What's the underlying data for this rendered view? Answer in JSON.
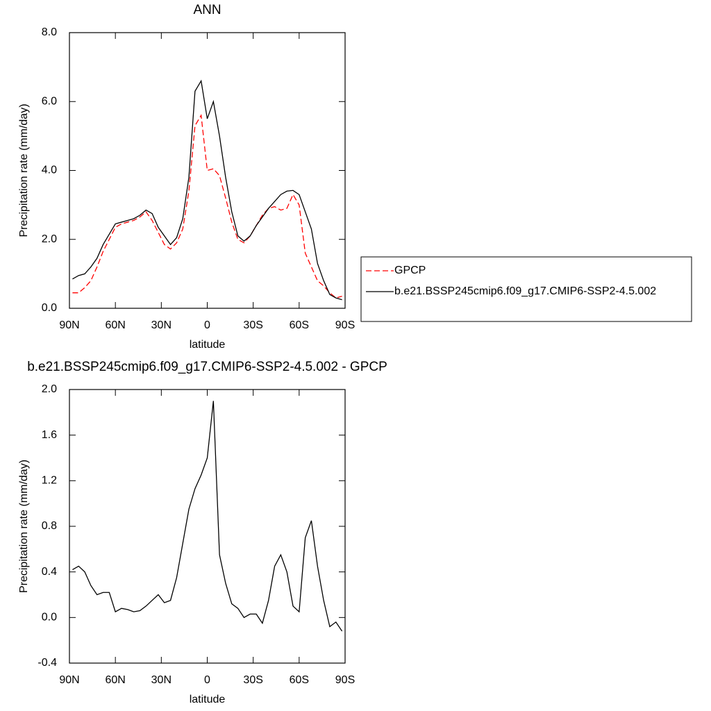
{
  "chart_data": [
    {
      "type": "line",
      "title": "ANN",
      "x_label": "latitude",
      "y_label": "Precipitation rate (mm/day)",
      "x": [
        88,
        84,
        80,
        76,
        72,
        68,
        64,
        60,
        56,
        52,
        48,
        44,
        40,
        36,
        32,
        28,
        24,
        20,
        16,
        12,
        8,
        4,
        0,
        -4,
        -8,
        -12,
        -16,
        -20,
        -24,
        -28,
        -32,
        -36,
        -40,
        -44,
        -48,
        -52,
        -56,
        -60,
        -64,
        -68,
        -72,
        -76,
        -80,
        -84,
        -88
      ],
      "xlim": [
        90,
        -90
      ],
      "xticks": [
        {
          "value": 90,
          "label": "90N"
        },
        {
          "value": 60,
          "label": "60N"
        },
        {
          "value": 30,
          "label": "30N"
        },
        0,
        {
          "value": -30,
          "label": "30S"
        },
        {
          "value": -60,
          "label": "60S"
        },
        {
          "value": -90,
          "label": "90S"
        }
      ],
      "ylim": [
        0,
        8
      ],
      "yticks": [
        {
          "value": 0,
          "label": "0.0"
        },
        {
          "value": 2,
          "label": "2.0"
        },
        {
          "value": 4,
          "label": "4.0"
        },
        {
          "value": 6,
          "label": "6.0"
        },
        {
          "value": 8,
          "label": "8.0"
        }
      ],
      "legend": "outside-right",
      "series": [
        {
          "name": "GPCP",
          "color": "#ff0000",
          "line_style": "dashed",
          "values": [
            0.45,
            0.45,
            0.6,
            0.8,
            1.2,
            1.65,
            2.0,
            2.35,
            2.45,
            2.5,
            2.55,
            2.65,
            2.8,
            2.55,
            2.2,
            1.85,
            1.72,
            1.9,
            2.3,
            3.4,
            5.3,
            5.6,
            4.0,
            4.05,
            3.85,
            3.2,
            2.5,
            2.0,
            1.9,
            2.1,
            2.4,
            2.7,
            2.9,
            2.95,
            2.85,
            2.9,
            3.3,
            3.0,
            1.6,
            1.2,
            0.8,
            0.65,
            0.45,
            0.3,
            0.35
          ]
        },
        {
          "name": "b.e21.BSSP245cmip6.f09_g17.CMIP6-SSP2-4.5.002",
          "color": "#000000",
          "line_style": "solid",
          "values": [
            0.85,
            0.95,
            1.0,
            1.2,
            1.45,
            1.85,
            2.15,
            2.45,
            2.5,
            2.55,
            2.6,
            2.7,
            2.85,
            2.75,
            2.35,
            2.1,
            1.85,
            2.05,
            2.6,
            3.8,
            6.3,
            6.6,
            5.5,
            6.0,
            5.0,
            3.8,
            2.8,
            2.1,
            1.95,
            2.1,
            2.4,
            2.65,
            2.9,
            3.1,
            3.3,
            3.4,
            3.42,
            3.3,
            2.8,
            2.3,
            1.3,
            0.8,
            0.4,
            0.3,
            0.25
          ]
        }
      ]
    },
    {
      "type": "line",
      "title": "b.e21.BSSP245cmip6.f09_g17.CMIP6-SSP2-4.5.002 - GPCP",
      "x_label": "latitude",
      "y_label": "Precipitation rate (mm/day)",
      "x": [
        88,
        84,
        80,
        76,
        72,
        68,
        64,
        60,
        56,
        52,
        48,
        44,
        40,
        36,
        32,
        28,
        24,
        20,
        16,
        12,
        8,
        4,
        0,
        -4,
        -8,
        -12,
        -16,
        -20,
        -24,
        -28,
        -32,
        -36,
        -40,
        -44,
        -48,
        -52,
        -56,
        -60,
        -64,
        -68,
        -72,
        -76,
        -80,
        -84,
        -88
      ],
      "xlim": [
        90,
        -90
      ],
      "xticks": [
        {
          "value": 90,
          "label": "90N"
        },
        {
          "value": 60,
          "label": "60N"
        },
        {
          "value": 30,
          "label": "30N"
        },
        0,
        {
          "value": -30,
          "label": "30S"
        },
        {
          "value": -60,
          "label": "60S"
        },
        {
          "value": -90,
          "label": "90S"
        }
      ],
      "ylim": [
        -0.4,
        2.0
      ],
      "yticks": [
        {
          "value": -0.4,
          "label": "-0.4"
        },
        {
          "value": 0,
          "label": "0.0"
        },
        0.4,
        0.8,
        1.2,
        1.6,
        {
          "value": 2,
          "label": "2.0"
        }
      ],
      "series": [
        {
          "color": "#000000",
          "line_style": "solid",
          "values": [
            0.42,
            0.45,
            0.4,
            0.28,
            0.2,
            0.22,
            0.22,
            0.05,
            0.08,
            0.07,
            0.05,
            0.06,
            0.1,
            0.15,
            0.2,
            0.13,
            0.15,
            0.35,
            0.65,
            0.95,
            1.13,
            1.25,
            1.4,
            1.9,
            0.55,
            0.3,
            0.12,
            0.08,
            0.0,
            0.03,
            0.03,
            -0.05,
            0.15,
            0.45,
            0.55,
            0.4,
            0.1,
            0.05,
            0.7,
            0.85,
            0.45,
            0.15,
            -0.08,
            -0.04,
            -0.12
          ]
        }
      ]
    }
  ]
}
